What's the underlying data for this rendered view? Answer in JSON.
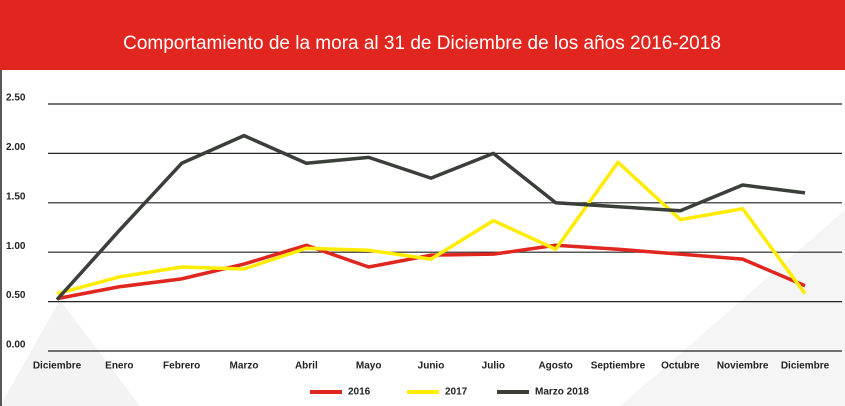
{
  "chart_data": {
    "type": "line",
    "title": "Comportamiento de la mora al 31 de Diciembre de los años 2016-2018",
    "categories": [
      "Diciembre",
      "Enero",
      "Febrero",
      "Marzo",
      "Abril",
      "Mayo",
      "Junio",
      "Julio",
      "Agosto",
      "Septiembre",
      "Octubre",
      "Noviembre",
      "Diciembre"
    ],
    "series": [
      {
        "name": "2016",
        "color": "#e0261f",
        "values": [
          0.53,
          0.65,
          0.73,
          0.88,
          1.07,
          0.85,
          0.97,
          0.98,
          1.07,
          1.03,
          0.98,
          0.93,
          0.66
        ]
      },
      {
        "name": "2017",
        "color": "#ffec00",
        "values": [
          0.58,
          0.75,
          0.85,
          0.83,
          1.04,
          1.02,
          0.93,
          1.32,
          1.03,
          1.91,
          1.33,
          1.44,
          0.58
        ]
      },
      {
        "name": "Marzo 2018",
        "color": "#3a3f3a",
        "values": [
          0.52,
          1.22,
          1.9,
          2.18,
          1.9,
          1.96,
          1.75,
          2.0,
          1.5,
          1.46,
          1.42,
          1.68,
          1.6
        ]
      }
    ],
    "ylim": [
      0,
      2.5
    ],
    "yticks": [
      {
        "value": 0,
        "label": "0.00"
      },
      {
        "value": 0.5,
        "label": "0.50"
      },
      {
        "value": 1,
        "label": "1.00"
      },
      {
        "value": 1.5,
        "label": "1.50"
      },
      {
        "value": 2,
        "label": "2.00"
      },
      {
        "value": 2.5,
        "label": "2.50"
      }
    ],
    "grid": true,
    "legend": "bottom"
  }
}
